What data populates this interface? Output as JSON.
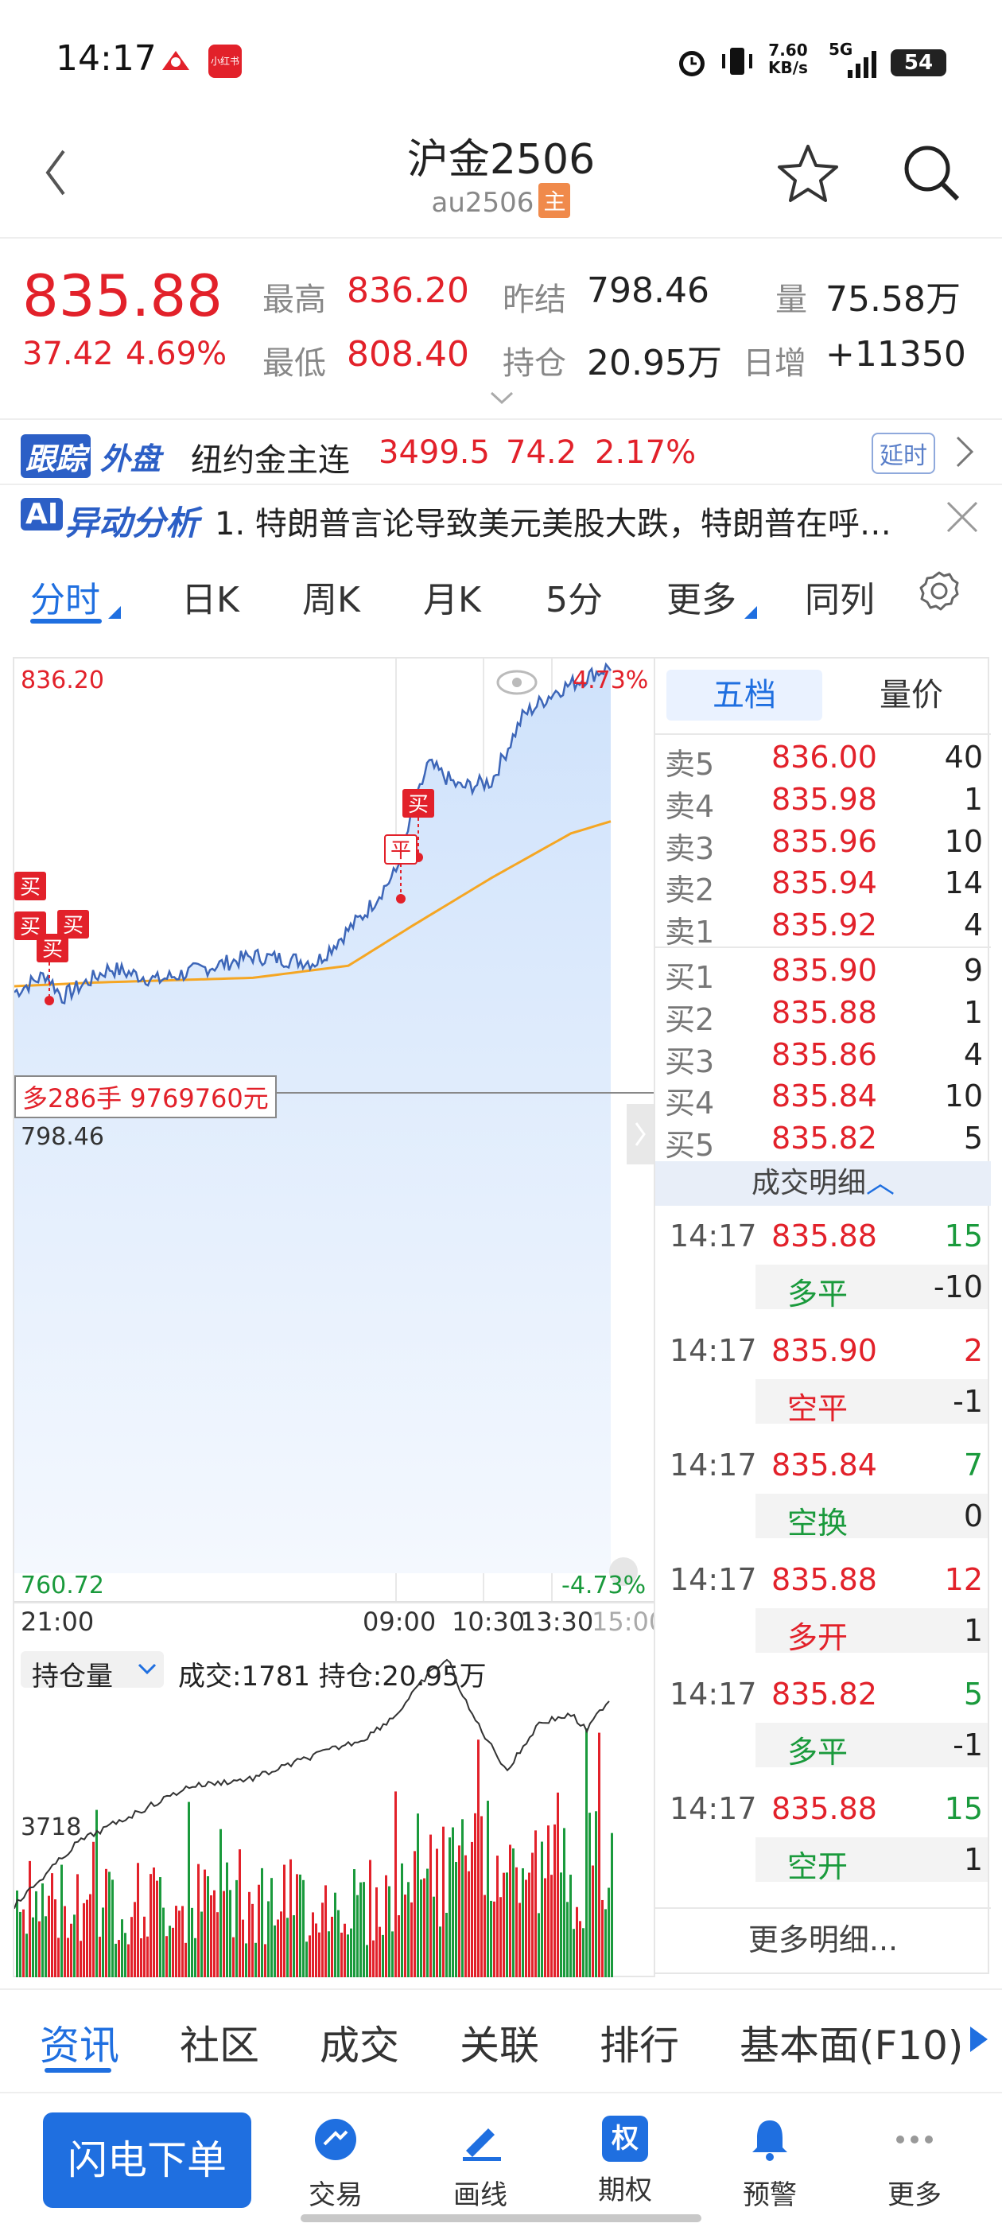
{
  "status": {
    "time": "14:17",
    "net_speed": "7.60",
    "net_unit": "KB/s",
    "signal": "5G",
    "battery": "54"
  },
  "header": {
    "title": "沪金2506",
    "code": "au2506",
    "badge": "主"
  },
  "quote": {
    "price": "835.88",
    "change": "37.42",
    "change_pct": "4.69%",
    "high_label": "最高",
    "high": "836.20",
    "low_label": "最低",
    "low": "808.40",
    "prev_label": "昨结",
    "prev": "798.46",
    "oi_label": "持仓",
    "oi": "20.95万",
    "vol_label": "量",
    "vol": "75.58万",
    "dayinc_label": "日增",
    "dayinc": "+11350"
  },
  "foreign": {
    "tag1": "跟踪",
    "tag2": "外盘",
    "name": "纽约金主连",
    "price": "3499.5",
    "change": "74.2",
    "pct": "2.17%",
    "delay": "延时"
  },
  "ai": {
    "tag": "AI",
    "label": "异动分析",
    "text": "1. 特朗普言论导致美元美股大跌，特朗普在呼…"
  },
  "tabs": [
    "分时",
    "日K",
    "周K",
    "月K",
    "5分",
    "更多",
    "同列"
  ],
  "chart": {
    "top_price": "836.20",
    "top_pct": "4.73%",
    "mid_price": "798.46",
    "bottom_price": "760.72",
    "bottom_pct": "-4.73%",
    "crosshair_label": "多286手  9769760元",
    "times": [
      "21:00",
      "09:00",
      "10:30",
      "13:30",
      "15:00"
    ],
    "markers": [
      "买",
      "买",
      "买",
      "买",
      "买",
      "平"
    ],
    "sub_selector": "持仓量",
    "sub_info": "成交:1781  持仓:20.95万",
    "sub_scale": "3718"
  },
  "orderbook": {
    "tabs": [
      "五档",
      "量价"
    ],
    "asks": [
      {
        "label": "卖5",
        "price": "836.00",
        "qty": "40"
      },
      {
        "label": "卖4",
        "price": "835.98",
        "qty": "1"
      },
      {
        "label": "卖3",
        "price": "835.96",
        "qty": "10"
      },
      {
        "label": "卖2",
        "price": "835.94",
        "qty": "14"
      },
      {
        "label": "卖1",
        "price": "835.92",
        "qty": "4"
      }
    ],
    "bids": [
      {
        "label": "买1",
        "price": "835.90",
        "qty": "9"
      },
      {
        "label": "买2",
        "price": "835.88",
        "qty": "1"
      },
      {
        "label": "买3",
        "price": "835.86",
        "qty": "4"
      },
      {
        "label": "买4",
        "price": "835.84",
        "qty": "10"
      },
      {
        "label": "买5",
        "price": "835.82",
        "qty": "5"
      }
    ],
    "detail_header": "成交明细",
    "trades": [
      {
        "time": "14:17",
        "price": "835.88",
        "qty": "15",
        "qty_color": "green",
        "type": "多平",
        "type_color": "green",
        "oi": "-10"
      },
      {
        "time": "14:17",
        "price": "835.90",
        "qty": "2",
        "qty_color": "red",
        "type": "空平",
        "type_color": "red",
        "oi": "-1"
      },
      {
        "time": "14:17",
        "price": "835.84",
        "qty": "7",
        "qty_color": "green",
        "type": "空换",
        "type_color": "green",
        "oi": "0"
      },
      {
        "time": "14:17",
        "price": "835.88",
        "qty": "12",
        "qty_color": "red",
        "type": "多开",
        "type_color": "red",
        "oi": "1"
      },
      {
        "time": "14:17",
        "price": "835.82",
        "qty": "5",
        "qty_color": "green",
        "type": "多平",
        "type_color": "green",
        "oi": "-1"
      },
      {
        "time": "14:17",
        "price": "835.88",
        "qty": "15",
        "qty_color": "green",
        "type": "空开",
        "type_color": "green",
        "oi": "1"
      }
    ],
    "more": "更多明细..."
  },
  "info_tabs": [
    "资讯",
    "社区",
    "成交",
    "关联",
    "排行",
    "基本面(F10)"
  ],
  "bottom_nav": {
    "primary": "闪电下单",
    "items": [
      {
        "label": "交易",
        "icon": "trade-icon"
      },
      {
        "label": "画线",
        "icon": "draw-icon"
      },
      {
        "label": "期权",
        "icon": "option-icon",
        "glyph": "权"
      },
      {
        "label": "预警",
        "icon": "bell-icon"
      },
      {
        "label": "更多",
        "icon": "more-icon"
      }
    ]
  },
  "colors": {
    "up": "#e2212a",
    "down": "#1a9a3c",
    "accent": "#1f6fe0",
    "price_line": "#3d66b8",
    "avg_line": "#f5a623"
  }
}
